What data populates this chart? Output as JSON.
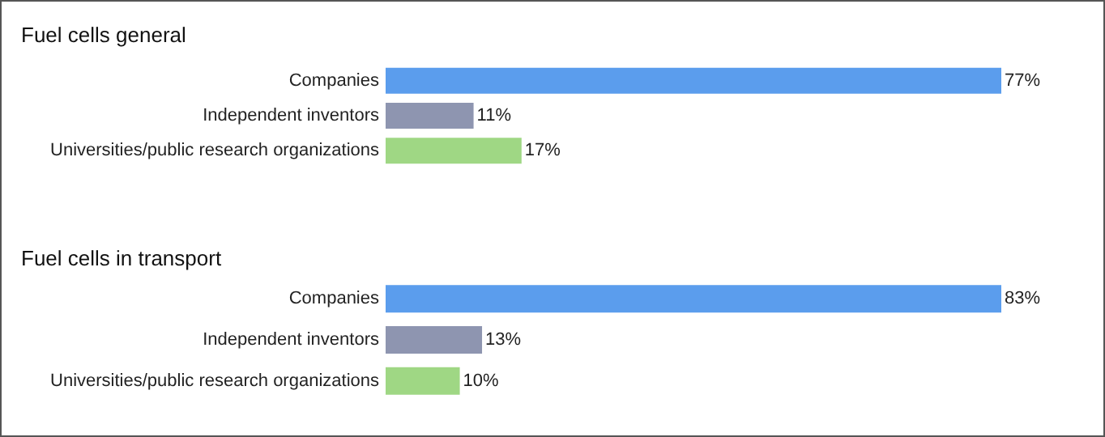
{
  "chart_data": [
    {
      "type": "bar",
      "orientation": "horizontal",
      "title": "Fuel cells general",
      "categories": [
        "Companies",
        "Independent inventors",
        "Universities/public research organizations"
      ],
      "values": [
        77,
        11,
        17
      ],
      "colors": [
        "#5b9ded",
        "#8e95b0",
        "#9fd784"
      ],
      "value_labels": [
        "77%",
        "11%",
        "17%"
      ]
    },
    {
      "type": "bar",
      "orientation": "horizontal",
      "title": "Fuel cells in transport",
      "categories": [
        "Companies",
        "Independent inventors",
        "Universities/public research organizations"
      ],
      "values": [
        83,
        13,
        10
      ],
      "colors": [
        "#5b9ded",
        "#8e95b0",
        "#9fd784"
      ],
      "value_labels": [
        "83%",
        "13%",
        "10%"
      ]
    }
  ]
}
